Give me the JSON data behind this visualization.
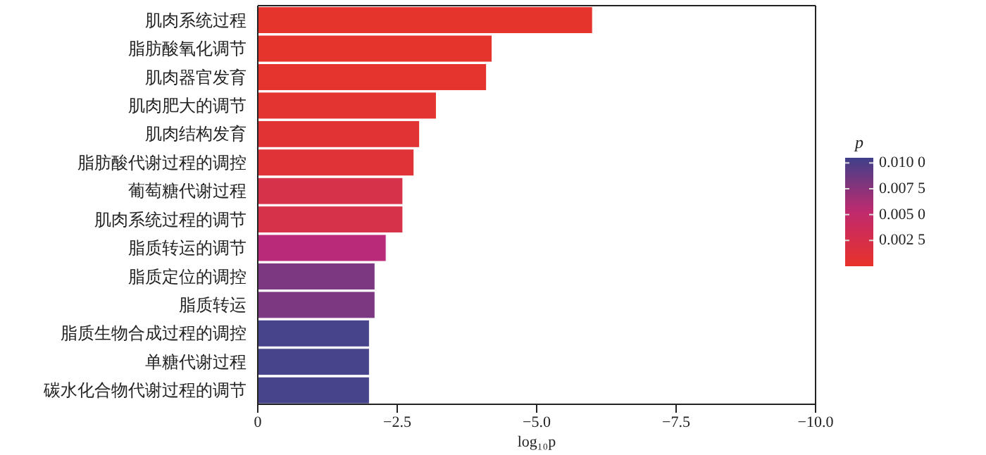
{
  "chart_data": {
    "type": "bar",
    "orientation": "horizontal",
    "xlabel": "log₁₀p",
    "clabel": "p",
    "categories": [
      "肌肉系统过程",
      "脂肪酸氧化调节",
      "肌肉器官发育",
      "肌肉肥大的调节",
      "肌肉结构发育",
      "脂肪酸代谢过程的调控",
      "葡萄糖代谢过程",
      "肌肉系统过程的调节",
      "脂质转运的调节",
      "脂质定位的调控",
      "脂质转运",
      "脂质生物合成过程的调控",
      "单糖代谢过程",
      "碳水化合物代谢过程的调节"
    ],
    "values": [
      -6.0,
      -4.2,
      -4.1,
      -3.2,
      -2.9,
      -2.8,
      -2.6,
      -2.6,
      -2.3,
      -2.1,
      -2.1,
      -2.0,
      -2.0,
      -2.0
    ],
    "colors": [
      "#e4342c",
      "#e4342c",
      "#e4342d",
      "#e3342f",
      "#e13333",
      "#df3338",
      "#d6334a",
      "#d6334a",
      "#b92b78",
      "#7d3882",
      "#7d3882",
      "#46448a",
      "#46448a",
      "#46448a"
    ],
    "xlim": [
      0,
      -10
    ],
    "xticks": [
      0,
      {
        "value": -2.5,
        "label": "−2.5"
      },
      {
        "value": -5,
        "label": "−5.0"
      },
      {
        "value": -7.5,
        "label": "−7.5"
      },
      {
        "value": -10,
        "label": "−10.0"
      }
    ],
    "clim": [
      0,
      0.0105
    ],
    "cticks": [
      {
        "value": 0.01,
        "label": "0.010 0"
      },
      {
        "value": 0.0075,
        "label": "0.007 5"
      },
      {
        "value": 0.005,
        "label": "0.005 0"
      },
      {
        "value": 0.0025,
        "label": "0.002 5"
      }
    ],
    "grid": false,
    "legend": false
  }
}
